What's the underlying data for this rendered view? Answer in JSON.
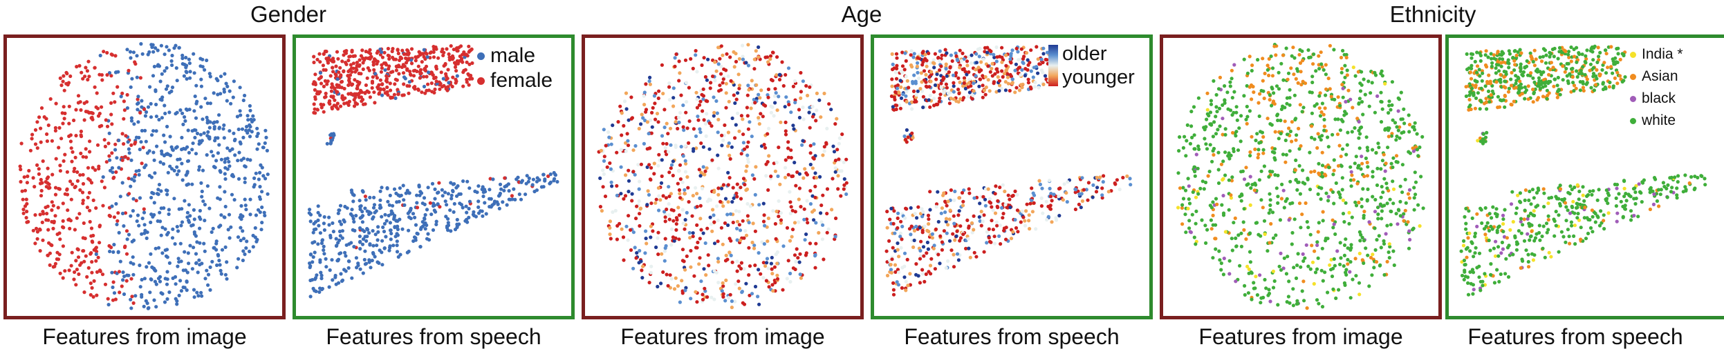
{
  "groups": [
    {
      "title": "Gender"
    },
    {
      "title": "Age"
    },
    {
      "title": "Ethnicity"
    }
  ],
  "captions": {
    "image": "Features from image",
    "speech": "Features from speech"
  },
  "legends": {
    "gender": [
      {
        "label": "male",
        "color": "#3e6fb8"
      },
      {
        "label": "female",
        "color": "#d62f2f"
      }
    ],
    "age": {
      "high": "older",
      "low": "younger",
      "colors": [
        "#1f3a93",
        "#5b8fd0",
        "#e8f0f0",
        "#f2a65a",
        "#cc1f1f"
      ]
    },
    "ethnicity": [
      {
        "label": "India *",
        "color": "#f5e12a"
      },
      {
        "label": "Asian",
        "color": "#f08c1f"
      },
      {
        "label": "black",
        "color": "#a05cb8"
      },
      {
        "label": "white",
        "color": "#3fae3a"
      }
    ]
  },
  "chart_data": [
    {
      "type": "scatter",
      "group": "Gender",
      "caption": "Features from image",
      "xlabel": "Features from image",
      "series": [
        {
          "name": "male"
        },
        {
          "name": "female"
        }
      ]
    },
    {
      "type": "scatter",
      "group": "Gender",
      "caption": "Features from speech",
      "xlabel": "Features from speech",
      "series": [
        {
          "name": "male"
        },
        {
          "name": "female"
        }
      ]
    },
    {
      "type": "scatter",
      "group": "Age",
      "caption": "Features from image",
      "xlabel": "Features from image",
      "colorscale": [
        "older",
        "younger"
      ]
    },
    {
      "type": "scatter",
      "group": "Age",
      "caption": "Features from speech",
      "xlabel": "Features from speech",
      "colorscale": [
        "older",
        "younger"
      ]
    },
    {
      "type": "scatter",
      "group": "Ethnicity",
      "caption": "Features from image",
      "xlabel": "Features from image",
      "series": [
        {
          "name": "India *"
        },
        {
          "name": "Asian"
        },
        {
          "name": "black"
        },
        {
          "name": "white"
        }
      ]
    },
    {
      "type": "scatter",
      "group": "Ethnicity",
      "caption": "Features from speech",
      "xlabel": "Features from speech",
      "series": [
        {
          "name": "India *"
        },
        {
          "name": "Asian"
        },
        {
          "name": "black"
        },
        {
          "name": "white"
        }
      ]
    }
  ]
}
